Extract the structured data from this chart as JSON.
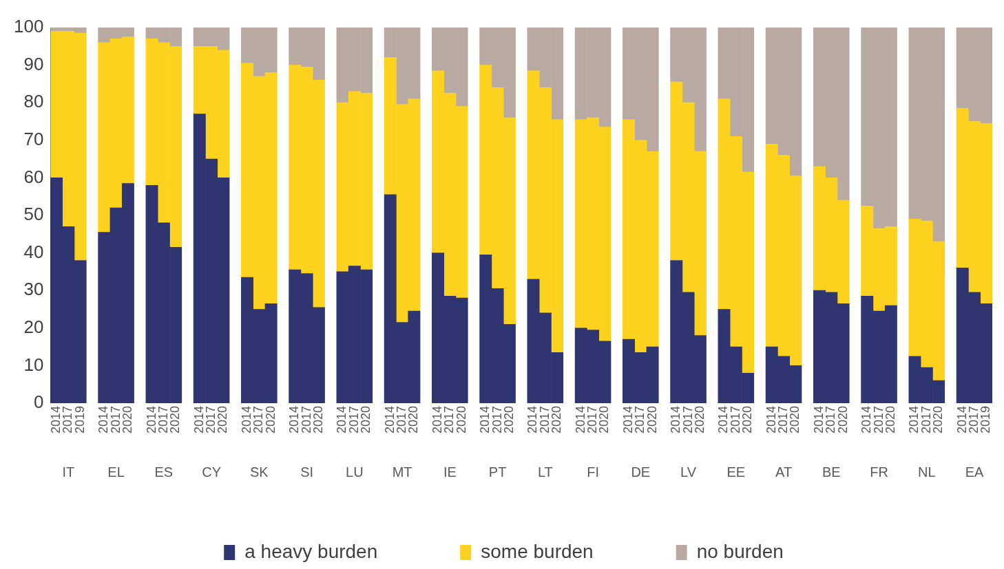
{
  "chart_data": {
    "type": "bar",
    "stacked": true,
    "grid": false,
    "legend": "bottom",
    "categories": [
      "2014",
      "2017",
      "2019",
      null,
      "2014",
      "2017",
      "2020",
      null,
      "2014",
      "2017",
      "2020",
      null,
      "2014",
      "2017",
      "2020",
      null,
      "2014",
      "2017",
      "2020",
      null,
      "2014",
      "2017",
      "2020",
      null,
      "2014",
      "2017",
      "2020",
      null,
      "2014",
      "2017",
      "2020",
      null,
      "2014",
      "2017",
      "2020",
      null,
      "2014",
      "2017",
      "2020",
      null,
      "2014",
      "2017",
      "2020",
      null,
      "2014",
      "2017",
      "2020",
      null,
      "2014",
      "2017",
      "2020",
      null,
      "2014",
      "2017",
      "2020",
      null,
      "2014",
      "2017",
      "2020",
      null,
      "2014",
      "2017",
      "2020",
      null,
      "2014",
      "2017",
      "2020",
      null,
      "2014",
      "2017",
      "2020",
      null,
      "2014",
      "2017",
      "2020",
      null,
      "2014",
      "2017",
      "2019"
    ],
    "series": [
      {
        "name": "a heavy burden",
        "color": "#2e3570",
        "values": [
          60,
          47,
          38,
          null,
          45.5,
          52,
          58.5,
          null,
          58,
          48,
          41.5,
          null,
          77,
          65,
          60,
          null,
          33.5,
          25,
          26.5,
          null,
          35.5,
          34.5,
          25.5,
          null,
          35,
          36.5,
          35.5,
          null,
          55.5,
          21.5,
          24.5,
          null,
          40,
          28.5,
          28,
          null,
          39.5,
          30.5,
          21,
          null,
          33,
          24,
          13.5,
          null,
          20,
          19.5,
          16.5,
          null,
          17,
          13.5,
          15,
          null,
          38,
          29.5,
          18,
          null,
          25,
          15,
          8,
          null,
          15,
          12.5,
          10,
          null,
          30,
          29.5,
          26.5,
          null,
          28.5,
          24.5,
          26,
          null,
          12.5,
          9.5,
          6,
          null,
          36,
          29.5,
          26.5
        ]
      },
      {
        "name": "some burden",
        "color": "#fdd21f",
        "values": [
          39,
          52,
          60.5,
          null,
          50.5,
          45,
          39,
          null,
          39,
          48,
          53.5,
          null,
          18,
          30,
          34,
          null,
          57,
          62,
          61.5,
          null,
          54.5,
          55,
          60.5,
          null,
          45,
          46.5,
          47,
          null,
          36.5,
          58,
          56.5,
          null,
          48.5,
          54,
          51,
          null,
          50.5,
          53.5,
          55,
          null,
          55.5,
          60,
          62,
          null,
          55.5,
          56.5,
          57,
          null,
          58.5,
          56.5,
          52,
          null,
          47.5,
          50.5,
          49,
          null,
          56,
          56,
          53.5,
          null,
          54,
          53.5,
          50.5,
          null,
          33,
          30.5,
          27.5,
          null,
          24,
          22,
          21,
          null,
          36.5,
          39,
          37,
          null,
          42.5,
          45.5,
          48
        ]
      },
      {
        "name": "no burden",
        "color": "#b8aaa2",
        "values": [
          1,
          1,
          1.5,
          null,
          4,
          3,
          2.5,
          null,
          3,
          4,
          5,
          null,
          5,
          5,
          6,
          null,
          9.5,
          13,
          12,
          null,
          10,
          10.5,
          14,
          null,
          20,
          17,
          17.5,
          null,
          8,
          20.5,
          19,
          null,
          11.5,
          17.5,
          21,
          null,
          10,
          16,
          24,
          null,
          11.5,
          16,
          24.5,
          null,
          24.5,
          24,
          26.5,
          null,
          24.5,
          30,
          33,
          null,
          14.5,
          20,
          33,
          null,
          19,
          29,
          38.5,
          null,
          31,
          34,
          39.5,
          null,
          37,
          40,
          46,
          null,
          47.5,
          53.5,
          53,
          null,
          51,
          51.5,
          57,
          null,
          21.5,
          25,
          25.5
        ]
      }
    ],
    "ylim": [
      0,
      100
    ],
    "yticks": [
      0,
      10,
      20,
      30,
      40,
      50,
      60,
      70,
      80,
      90,
      100
    ],
    "annotations": [
      "IT",
      "EL",
      "ES",
      "CY",
      "SK",
      "SI",
      "LU",
      "MT",
      "IE",
      "PT",
      "LT",
      "FI",
      "DE",
      "LV",
      "EE",
      "AT",
      "BE",
      "FR",
      "NL",
      "EA"
    ]
  }
}
